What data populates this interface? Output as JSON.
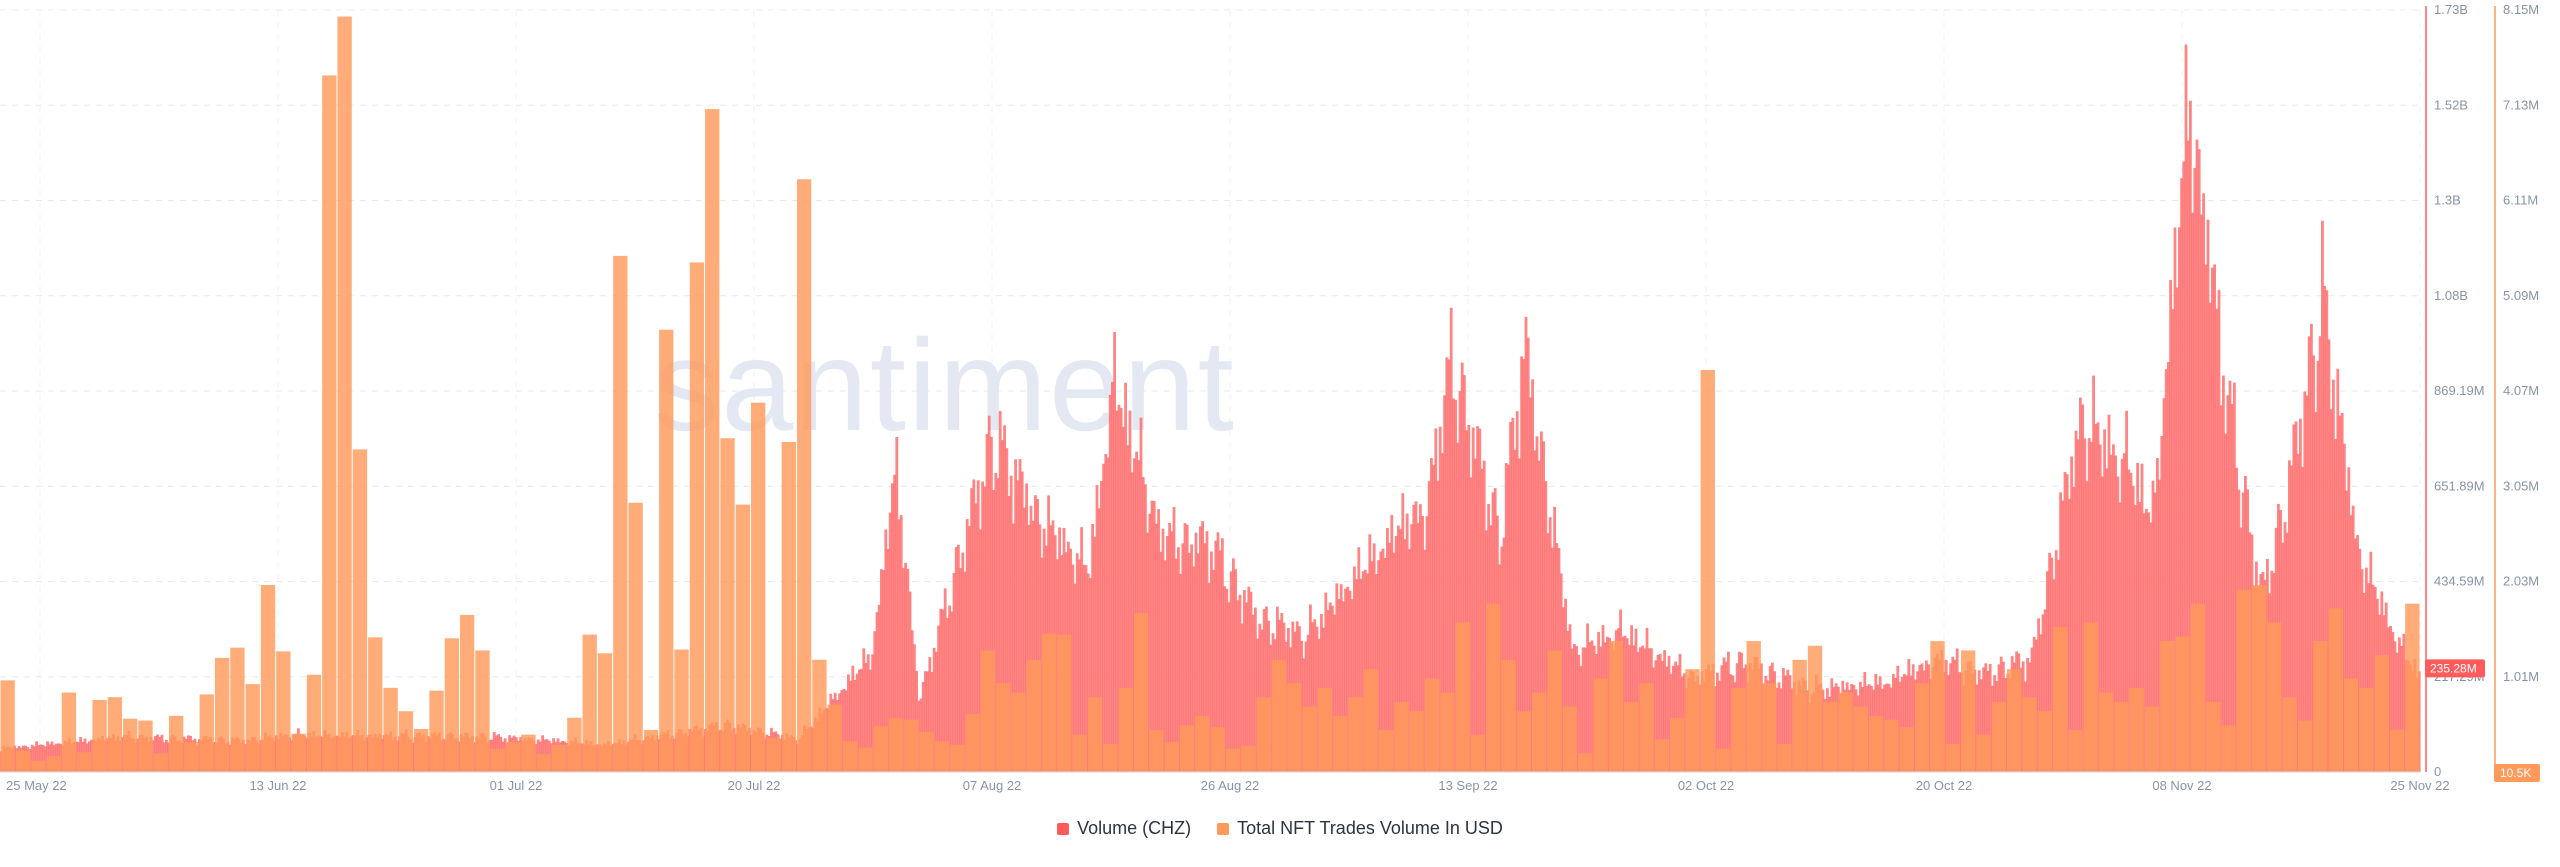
{
  "watermark": "santiment",
  "chart_data": {
    "type": "bar",
    "x_ticks": [
      "25 May 22",
      "13 Jun 22",
      "01 Jul 22",
      "20 Jul 22",
      "07 Aug 22",
      "26 Aug 22",
      "13 Sep 22",
      "02 Oct 22",
      "20 Oct 22",
      "08 Nov 22",
      "25 Nov 22"
    ],
    "y_axis_volume": {
      "ticks": [
        "0",
        "217.29M",
        "434.59M",
        "651.89M",
        "869.19M",
        "1.08B",
        "1.3B",
        "1.52B",
        "1.73B"
      ],
      "ylim": [
        0,
        1730000000
      ],
      "current_value_label": "235.28M",
      "color": "#ff5b5b"
    },
    "y_axis_nft": {
      "ticks": [
        "10.5K",
        "1.01M",
        "2.03M",
        "3.05M",
        "4.07M",
        "5.09M",
        "6.11M",
        "7.13M",
        "8.15M"
      ],
      "ylim": [
        0,
        8150000
      ],
      "current_value_label": "10.5K",
      "color": "#ff9a5a"
    },
    "series": [
      {
        "name": "Volume (CHZ)",
        "color": "#ff6e6e",
        "unit": "M",
        "anchors_x": [
          0,
          0.05,
          0.1,
          0.12,
          0.2,
          0.23,
          0.25,
          0.3,
          0.33,
          0.35,
          0.36,
          0.37,
          0.38,
          0.41,
          0.43,
          0.45,
          0.46,
          0.48,
          0.5,
          0.52,
          0.54,
          0.56,
          0.59,
          0.6,
          0.62,
          0.63,
          0.65,
          0.67,
          0.7,
          0.72,
          0.75,
          0.78,
          0.8,
          0.82,
          0.84,
          0.86,
          0.88,
          0.89,
          0.905,
          0.92,
          0.935,
          0.945,
          0.96,
          0.975,
          0.99,
          1.0
        ],
        "anchors_y": [
          60,
          90,
          80,
          95,
          90,
          80,
          70,
          120,
          85,
          230,
          300,
          780,
          190,
          850,
          640,
          520,
          1000,
          600,
          580,
          390,
          350,
          500,
          700,
          1050,
          600,
          1080,
          310,
          360,
          240,
          280,
          210,
          230,
          290,
          250,
          290,
          900,
          780,
          650,
          1720,
          980,
          450,
          690,
          1210,
          560,
          350,
          240
        ]
      },
      {
        "name": "Total NFT Trades Volume In USD",
        "color": "#ff9a5a",
        "unit": "K",
        "bars": [
          980,
          230,
          120,
          170,
          850,
          210,
          770,
          800,
          570,
          550,
          200,
          600,
          320,
          830,
          1220,
          1330,
          940,
          2000,
          1290,
          410,
          1040,
          7450,
          8080,
          3450,
          1440,
          900,
          650,
          460,
          870,
          1430,
          1680,
          1300,
          250,
          320,
          400,
          190,
          290,
          580,
          1470,
          1270,
          5520,
          2880,
          450,
          4730,
          1310,
          5450,
          7090,
          3570,
          2860,
          3950,
          360,
          3530,
          6340,
          1200,
          720,
          330,
          260,
          490,
          580,
          560,
          430,
          330,
          290,
          620,
          1300,
          950,
          850,
          1200,
          1480,
          1470,
          400,
          800,
          300,
          900,
          1700,
          450,
          320,
          500,
          600,
          480,
          250,
          280,
          800,
          1200,
          950,
          700,
          900,
          600,
          800,
          1100,
          450,
          750,
          650,
          1000,
          850,
          1600,
          400,
          1800,
          1200,
          650,
          850,
          1300,
          700,
          200,
          1000,
          1400,
          750,
          950,
          350,
          580,
          1100,
          4300,
          250,
          900,
          1400,
          950,
          300,
          1200,
          1350,
          750,
          850,
          700,
          600,
          560,
          480,
          950,
          1400,
          300,
          1300,
          400,
          750,
          1100,
          800,
          650,
          1550,
          450,
          1600,
          850,
          750,
          900,
          700,
          1400,
          1450,
          1800,
          750,
          500,
          1950,
          2000,
          1600,
          800,
          550,
          1400,
          1750,
          1000,
          900,
          1250,
          450,
          1800
        ]
      }
    ]
  }
}
